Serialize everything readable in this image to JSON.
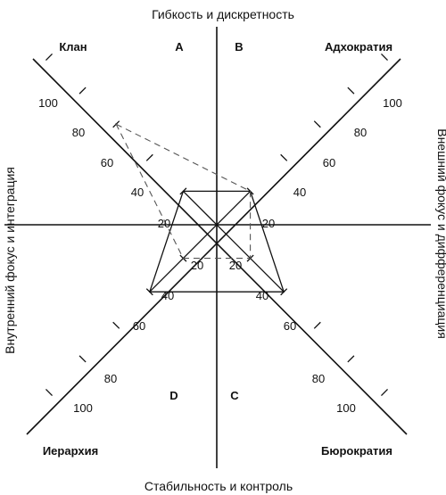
{
  "axes": {
    "top": "Гибкость и дискретность",
    "bottom": "Стабильность и контроль",
    "left": "Внутренний фокус и интеграция",
    "right": "Внешний фокус и дифференциация"
  },
  "quadrants": {
    "top_left": "Клан",
    "top_right": "Адхократия",
    "bottom_left": "Иерархия",
    "bottom_right": "Бюрократия"
  },
  "letters": {
    "a": "A",
    "b": "B",
    "c": "C",
    "d": "D"
  },
  "scale": [
    "20",
    "40",
    "60",
    "80",
    "100"
  ],
  "profiles": {
    "solid": {
      "Клан": 20,
      "Адхократия": 20,
      "Бюрократия": 40,
      "Иерархия": 40
    },
    "dashed": {
      "Клан": 60,
      "Адхократия": 20,
      "Бюрократия": 20,
      "Иерархия": 20
    }
  }
}
